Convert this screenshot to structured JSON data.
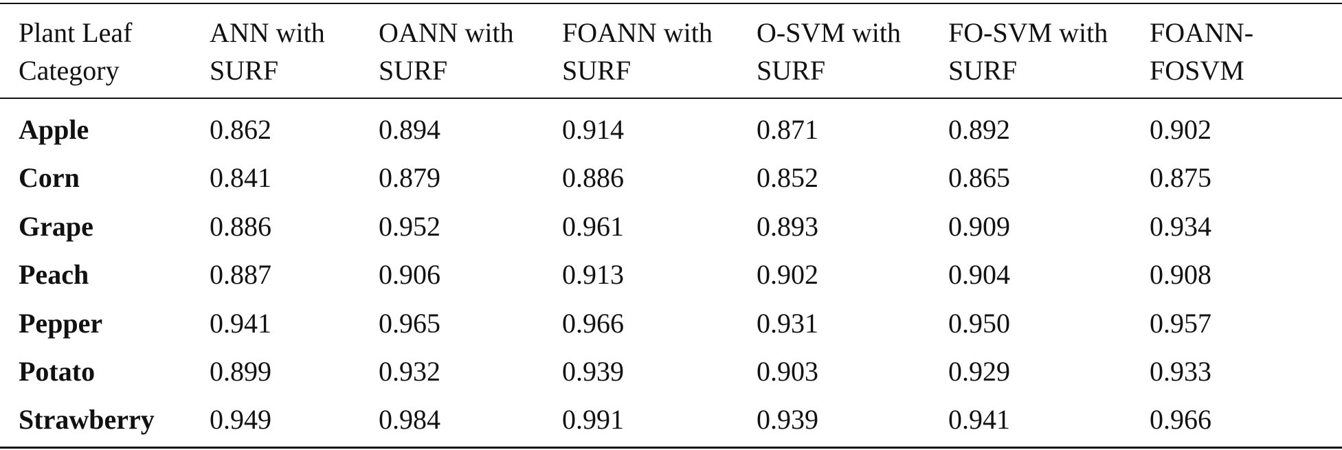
{
  "table": {
    "header": [
      [
        "Plant Leaf",
        "Category"
      ],
      [
        "ANN with",
        "SURF"
      ],
      [
        "OANN with",
        "SURF"
      ],
      [
        "FOANN with",
        "SURF"
      ],
      [
        "O-SVM with",
        "SURF"
      ],
      [
        "FO-SVM with",
        "SURF"
      ],
      [
        "FOANN-",
        "FOSVM"
      ]
    ],
    "rows": [
      [
        "Apple",
        "0.862",
        "0.894",
        "0.914",
        "0.871",
        "0.892",
        "0.902"
      ],
      [
        "Corn",
        "0.841",
        "0.879",
        "0.886",
        "0.852",
        "0.865",
        "0.875"
      ],
      [
        "Grape",
        "0.886",
        "0.952",
        "0.961",
        "0.893",
        "0.909",
        "0.934"
      ],
      [
        "Peach",
        "0.887",
        "0.906",
        "0.913",
        "0.902",
        "0.904",
        "0.908"
      ],
      [
        "Pepper",
        "0.941",
        "0.965",
        "0.966",
        "0.931",
        "0.950",
        "0.957"
      ],
      [
        "Potato",
        "0.899",
        "0.932",
        "0.939",
        "0.903",
        "0.929",
        "0.933"
      ],
      [
        "Strawberry",
        "0.949",
        "0.984",
        "0.991",
        "0.939",
        "0.941",
        "0.966"
      ]
    ]
  }
}
